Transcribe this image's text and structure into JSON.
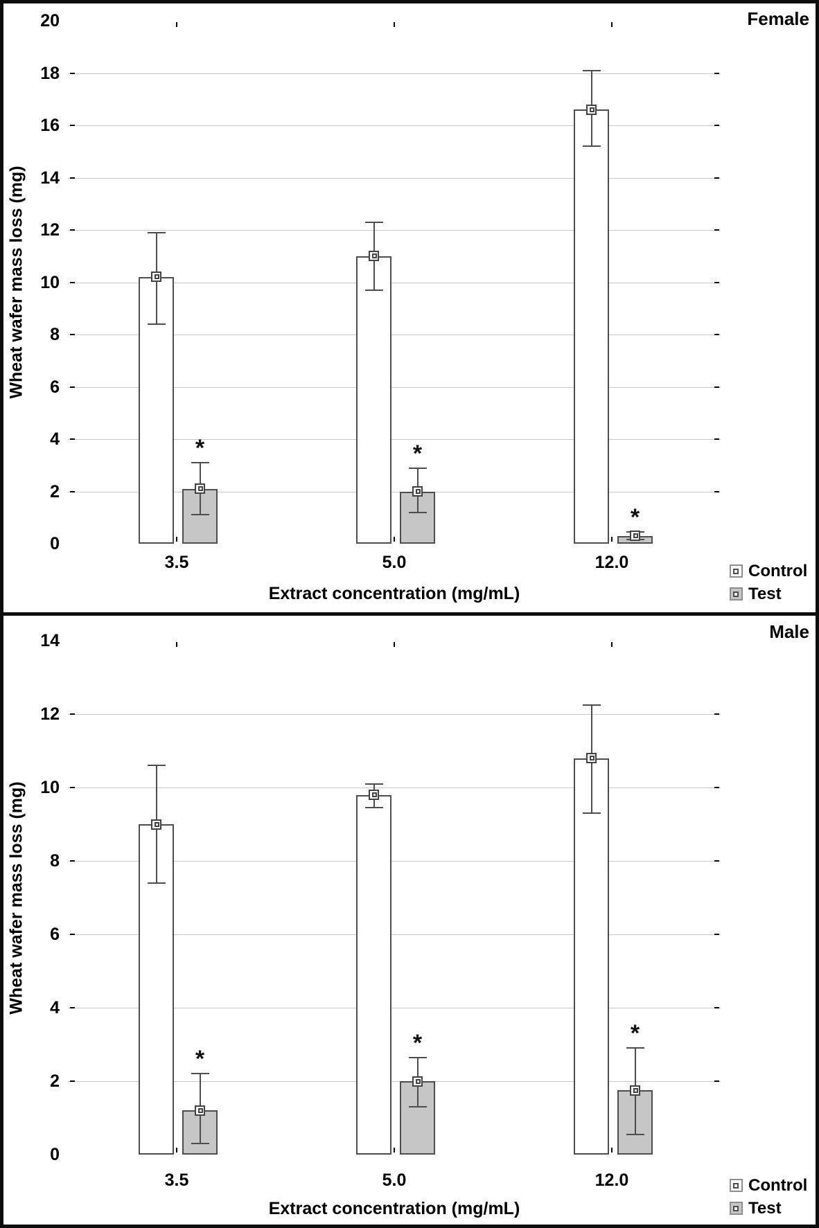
{
  "figure": {
    "type": "grouped-bar-with-error-bars",
    "panels_stacked": 2,
    "x_axis_title": "Extract concentration (mg/mL)",
    "y_axis_title": "Wheat wafer mass loss (mg)",
    "legend_labels": [
      "Control",
      "Test"
    ],
    "significance_marker": "*",
    "colors": {
      "control_fill": "#ffffff",
      "test_fill": "#c6c6c6",
      "bar_border": "#4d4d4d",
      "error_bar": "#4d4d4d",
      "gridline": "#c9c9c9",
      "axis": "#000000",
      "text": "#000000",
      "frame": "#0d0d0d"
    }
  },
  "chart_data": [
    {
      "type": "bar",
      "title": "Female",
      "categories": [
        "3.5",
        "5.0",
        "12.0"
      ],
      "xlabel": "Extract concentration (mg/mL)",
      "ylabel": "Wheat wafer mass loss (mg)",
      "ylim": [
        0,
        20
      ],
      "yticks": [
        0,
        2,
        4,
        6,
        8,
        10,
        12,
        14,
        16,
        18,
        20
      ],
      "grid": true,
      "legend_position": "outside-bottom-right",
      "series": [
        {
          "name": "Control",
          "fill": "#ffffff",
          "values": [
            10.2,
            11.0,
            16.6
          ],
          "whisker_low": [
            8.4,
            9.7,
            15.2
          ],
          "whisker_high": [
            11.9,
            12.3,
            18.1
          ],
          "significant": [
            false,
            false,
            false
          ]
        },
        {
          "name": "Test",
          "fill": "#c6c6c6",
          "values": [
            2.1,
            2.0,
            0.3
          ],
          "whisker_low": [
            1.1,
            1.2,
            0.15
          ],
          "whisker_high": [
            3.1,
            2.9,
            0.45
          ],
          "significant": [
            true,
            true,
            true
          ]
        }
      ]
    },
    {
      "type": "bar",
      "title": "Male",
      "categories": [
        "3.5",
        "5.0",
        "12.0"
      ],
      "xlabel": "Extract concentration (mg/mL)",
      "ylabel": "Wheat wafer mass loss (mg)",
      "ylim": [
        0,
        14
      ],
      "yticks": [
        0,
        2,
        4,
        6,
        8,
        10,
        12,
        14
      ],
      "grid": true,
      "legend_position": "outside-bottom-right",
      "series": [
        {
          "name": "Control",
          "fill": "#ffffff",
          "values": [
            9.0,
            9.8,
            10.8
          ],
          "whisker_low": [
            7.4,
            9.45,
            9.3
          ],
          "whisker_high": [
            10.6,
            10.1,
            12.25
          ],
          "significant": [
            false,
            false,
            false
          ]
        },
        {
          "name": "Test",
          "fill": "#c6c6c6",
          "values": [
            1.2,
            2.0,
            1.75
          ],
          "whisker_low": [
            0.3,
            1.3,
            0.55
          ],
          "whisker_high": [
            2.2,
            2.65,
            2.9
          ],
          "significant": [
            true,
            true,
            true
          ]
        }
      ]
    }
  ]
}
